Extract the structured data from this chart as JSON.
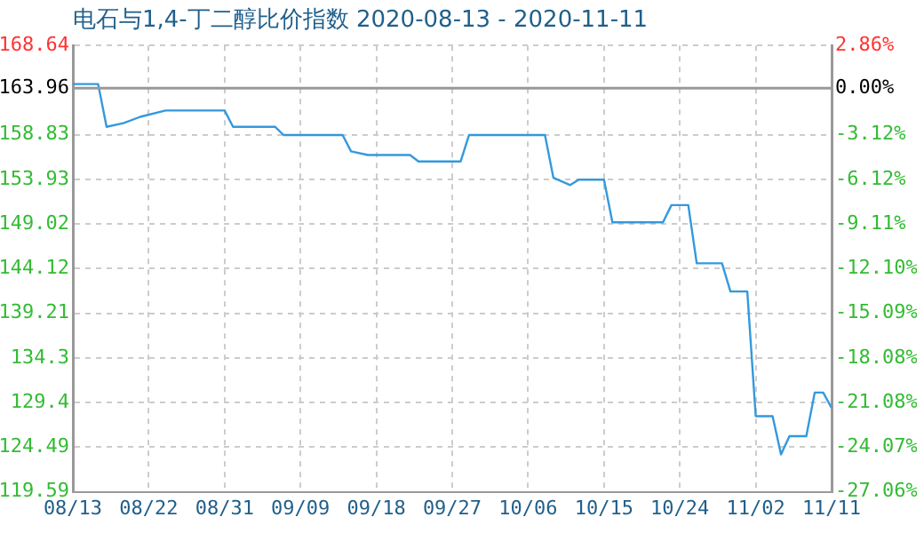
{
  "chart_data": {
    "type": "line",
    "title": "电石与1,4-丁二醇比价指数 2020-08-13 - 2020-11-11",
    "x": [
      "2020-08-13",
      "2020-08-16",
      "2020-08-17",
      "2020-08-19",
      "2020-08-21",
      "2020-08-24",
      "2020-08-31",
      "2020-09-01",
      "2020-09-06",
      "2020-09-07",
      "2020-09-14",
      "2020-09-15",
      "2020-09-17",
      "2020-09-22",
      "2020-09-23",
      "2020-09-28",
      "2020-09-29",
      "2020-10-08",
      "2020-10-09",
      "2020-10-11",
      "2020-10-12",
      "2020-10-15",
      "2020-10-16",
      "2020-10-22",
      "2020-10-23",
      "2020-10-25",
      "2020-10-26",
      "2020-10-29",
      "2020-10-30",
      "2020-11-01",
      "2020-11-02",
      "2020-11-04",
      "2020-11-05",
      "2020-11-06",
      "2020-11-08",
      "2020-11-09",
      "2020-11-10",
      "2020-11-11"
    ],
    "series": [
      {
        "color": "#3399dd",
        "values": [
          164.4,
          164.4,
          159.7,
          160.1,
          160.8,
          161.5,
          161.5,
          159.7,
          159.7,
          158.8,
          158.8,
          157.0,
          156.6,
          156.6,
          155.9,
          155.9,
          158.8,
          158.8,
          154.1,
          153.3,
          153.9,
          153.9,
          149.2,
          149.2,
          151.1,
          151.1,
          144.7,
          144.7,
          141.6,
          141.6,
          127.9,
          127.9,
          123.7,
          125.7,
          125.7,
          130.5,
          130.5,
          128.8
        ]
      }
    ],
    "xlim": [
      "2020-08-13",
      "2020-11-11"
    ],
    "xticks": [
      {
        "value": "2020-08-13",
        "label": "08/13"
      },
      {
        "value": "2020-08-22",
        "label": "08/22"
      },
      {
        "value": "2020-08-31",
        "label": "08/31"
      },
      {
        "value": "2020-09-09",
        "label": "09/09"
      },
      {
        "value": "2020-09-18",
        "label": "09/18"
      },
      {
        "value": "2020-09-27",
        "label": "09/27"
      },
      {
        "value": "2020-10-06",
        "label": "10/06"
      },
      {
        "value": "2020-10-15",
        "label": "10/15"
      },
      {
        "value": "2020-10-24",
        "label": "10/24"
      },
      {
        "value": "2020-11-02",
        "label": "11/02"
      },
      {
        "value": "2020-11-11",
        "label": "11/11"
      }
    ],
    "ylim": [
      119.59,
      168.64
    ],
    "yticks": [
      119.59,
      124.49,
      129.4,
      134.3,
      139.21,
      144.12,
      149.02,
      153.93,
      158.83,
      163.96,
      168.64
    ],
    "y2lim": [
      -27.06,
      2.86
    ],
    "y2ticks": [
      {
        "value": -27.06,
        "label": "-27.06%"
      },
      {
        "value": -24.07,
        "label": "-24.07%"
      },
      {
        "value": -21.08,
        "label": "-21.08%"
      },
      {
        "value": -18.08,
        "label": "-18.08%"
      },
      {
        "value": -15.09,
        "label": "-15.09%"
      },
      {
        "value": -12.1,
        "label": "-12.10%"
      },
      {
        "value": -9.11,
        "label": "-9.11%"
      },
      {
        "value": -6.12,
        "label": "-6.12%"
      },
      {
        "value": -3.12,
        "label": "-3.12%"
      },
      {
        "value": 0,
        "label": "0.00%"
      },
      {
        "value": 2.86,
        "label": "2.86%"
      }
    ],
    "ref_lines": [
      {
        "axis": "y",
        "value": 163.96,
        "color": "#999999"
      }
    ],
    "grid": true,
    "legend": false,
    "marker": "none",
    "line_style": "solid"
  }
}
